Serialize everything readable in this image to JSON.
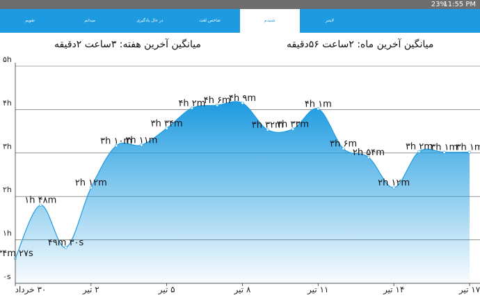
{
  "status_bar": {
    "battery": "23%",
    "time": "11:55 PM"
  },
  "tabs": [
    "تقویم",
    "میدانم",
    "در حال یادگیری",
    "شاخص لغت",
    "شنیدم",
    "لایتنر"
  ],
  "averages": {
    "week": "میانگین آخرین هفته: ۳ساعت  ۲دقیقه",
    "month": "میانگین آخرین ماه: ۲ساعت  ۵۶دقیقه"
  },
  "chart_data": {
    "type": "area",
    "categories": [
      "۳۰ خرداد",
      null,
      null,
      "۲ تیر",
      null,
      null,
      "۵ تیر",
      null,
      null,
      "۸ تیر",
      null,
      null,
      "۱۱ تیر",
      null,
      null,
      "۱۴ تیر",
      null,
      null,
      "۱۷ تیر"
    ],
    "values": [
      0.574,
      1.8,
      0.825,
      2.2,
      3.167,
      3.183,
      3.567,
      4.033,
      4.1,
      4.15,
      3.533,
      3.55,
      4.017,
      3.1,
      2.9,
      2.2,
      3.033,
      3.017,
      3.017
    ],
    "value_labels": [
      "۳۴m ۲۷s",
      "۱h ۴۸m",
      "۴۹m ۳۰s",
      "۲h ۱۲m",
      "۳h ۱۰m",
      "۳h ۱۱m",
      "۳h ۳۴m",
      "۴h ۲m",
      "۴h ۶m",
      "۴h ۹m",
      "۳h ۳۲m",
      "۳h ۳۳m",
      "۴h ۱m",
      "۳h ۶m",
      "۲h ۵۴m",
      "۲h ۱۲m",
      "۳h ۲m",
      "۳h ۱m",
      "۳h ۱m"
    ],
    "ylim": [
      0,
      5
    ],
    "yticks": [
      {
        "value": 0,
        "label": "۰s"
      },
      {
        "value": 1,
        "label": "۱h"
      },
      {
        "value": 2,
        "label": "۲h"
      },
      {
        "value": 3,
        "label": "۳h"
      },
      {
        "value": 4,
        "label": "۴h"
      },
      {
        "value": 5,
        "label": "۵h"
      }
    ],
    "color": "#1e9be0",
    "grid": true
  }
}
